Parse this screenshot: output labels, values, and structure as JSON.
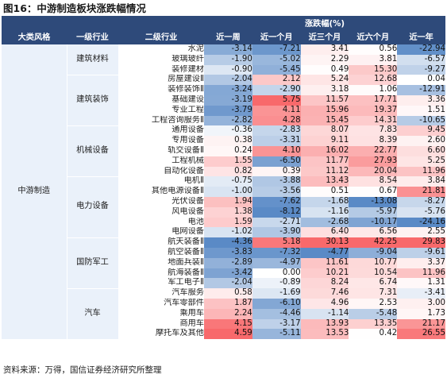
{
  "title": "图16：中游制造板块涨跌幅情况",
  "header": {
    "group_label": "涨跌幅(%)",
    "col_style": "大类风格",
    "col_l1": "一级行业",
    "col_l2": "二级行业",
    "periods": [
      "近一周",
      "近一个月",
      "近三个月",
      "近六个月",
      "近一年"
    ]
  },
  "style_label": "中游制造",
  "groups": [
    {
      "l1": "建筑材料",
      "rows": [
        {
          "name": "水泥",
          "values": [
            "-3.14",
            "-7.21",
            "3.41",
            "0.56",
            "-22.94"
          ]
        },
        {
          "name": "玻璃玻纤",
          "values": [
            "-1.90",
            "-5.02",
            "2.29",
            "3.81",
            "-6.57"
          ]
        },
        {
          "name": "装修建材",
          "values": [
            "-0.90",
            "-5.45",
            "0.49",
            "15.30",
            "-9.27"
          ]
        }
      ]
    },
    {
      "l1": "建筑装饰",
      "rows": [
        {
          "name": "房屋建设Ⅱ",
          "values": [
            "-2.04",
            "2.12",
            "5.24",
            "12.68",
            "0.04"
          ]
        },
        {
          "name": "装修装饰Ⅱ",
          "values": [
            "-3.24",
            "-2.90",
            "3.18",
            "1.06",
            "-12.91"
          ]
        },
        {
          "name": "基础建设",
          "values": [
            "-3.19",
            "5.75",
            "11.57",
            "17.71",
            "3.36"
          ]
        },
        {
          "name": "专业工程",
          "values": [
            "-3.79",
            "4.11",
            "15.96",
            "19.37",
            "1.51"
          ]
        },
        {
          "name": "工程咨询服务Ⅱ",
          "values": [
            "-2.82",
            "4.28",
            "15.45",
            "14.31",
            "-10.65"
          ]
        }
      ]
    },
    {
      "l1": "机械设备",
      "rows": [
        {
          "name": "通用设备",
          "values": [
            "-0.36",
            "-2.83",
            "8.07",
            "7.83",
            "9.45"
          ]
        },
        {
          "name": "专用设备",
          "values": [
            "0.38",
            "-3.31",
            "9.11",
            "8.39",
            "2.60"
          ]
        },
        {
          "name": "轨交设备Ⅱ",
          "values": [
            "0.24",
            "4.10",
            "16.02",
            "22.77",
            "6.60"
          ]
        },
        {
          "name": "工程机械",
          "values": [
            "1.55",
            "-6.50",
            "11.77",
            "27.93",
            "5.25"
          ]
        },
        {
          "name": "自动化设备",
          "values": [
            "0.82",
            "0.39",
            "11.12",
            "20.04",
            "11.96"
          ]
        }
      ]
    },
    {
      "l1": "电力设备",
      "rows": [
        {
          "name": "电机Ⅱ",
          "values": [
            "-0.75",
            "-3.88",
            "13.43",
            "8.54",
            "3.84"
          ]
        },
        {
          "name": "其他电源设备Ⅱ",
          "values": [
            "-1.00",
            "-3.56",
            "0.51",
            "0.67",
            "21.81"
          ]
        },
        {
          "name": "光伏设备",
          "values": [
            "1.94",
            "-7.62",
            "-1.68",
            "-13.08",
            "-8.27"
          ]
        },
        {
          "name": "风电设备",
          "values": [
            "1.38",
            "-8.12",
            "-1.16",
            "-5.97",
            "-5.76"
          ]
        },
        {
          "name": "电池",
          "values": [
            "1.59",
            "-2.71",
            "-2.68",
            "-10.17",
            "-24.16"
          ]
        },
        {
          "name": "电网设备",
          "values": [
            "-1.02",
            "-3.90",
            "6.40",
            "6.56",
            "2.55"
          ]
        }
      ]
    },
    {
      "l1": "国防军工",
      "rows": [
        {
          "name": "航天装备Ⅱ",
          "values": [
            "-4.36",
            "5.18",
            "30.13",
            "42.25",
            "29.83"
          ]
        },
        {
          "name": "航空装备Ⅱ",
          "values": [
            "-3.83",
            "-7.32",
            "-4.77",
            "-9.04",
            "-9.61"
          ]
        },
        {
          "name": "地面兵装Ⅱ",
          "values": [
            "-2.89",
            "-4.97",
            "11.61",
            "10.77",
            "3.37"
          ]
        },
        {
          "name": "航海装备Ⅱ",
          "values": [
            "-3.42",
            "0.00",
            "10.21",
            "10.54",
            "11.96"
          ]
        },
        {
          "name": "军工电子Ⅱ",
          "values": [
            "-2.04",
            "-0.89",
            "8.24",
            "6.74",
            "1.31"
          ]
        }
      ]
    },
    {
      "l1": "汽车",
      "rows": [
        {
          "name": "汽车服务",
          "values": [
            "0.58",
            "-1.69",
            "7.46",
            "7.31",
            "-3.41"
          ]
        },
        {
          "name": "汽车零部件",
          "values": [
            "1.87",
            "-6.10",
            "4.96",
            "2.53",
            "3.00"
          ]
        },
        {
          "name": "乘用车",
          "values": [
            "2.24",
            "-4.46",
            "-1.14",
            "-5.48",
            "1.73"
          ]
        },
        {
          "name": "商用车",
          "values": [
            "4.15",
            "-3.17",
            "13.93",
            "13.35",
            "21.17"
          ]
        },
        {
          "name": "摩托车及其他",
          "values": [
            "4.59",
            "-5.11",
            "13.53",
            "0.42",
            "26.55"
          ]
        }
      ]
    }
  ],
  "source": "资料来源：万得，国信证券经济研究所整理",
  "colors": {
    "header_bg": "#2e4a7a",
    "label_bg": "#eaf1fa",
    "positive": "#f8696b",
    "negative": "#5a8ac6",
    "neutral": "#ffffff"
  }
}
